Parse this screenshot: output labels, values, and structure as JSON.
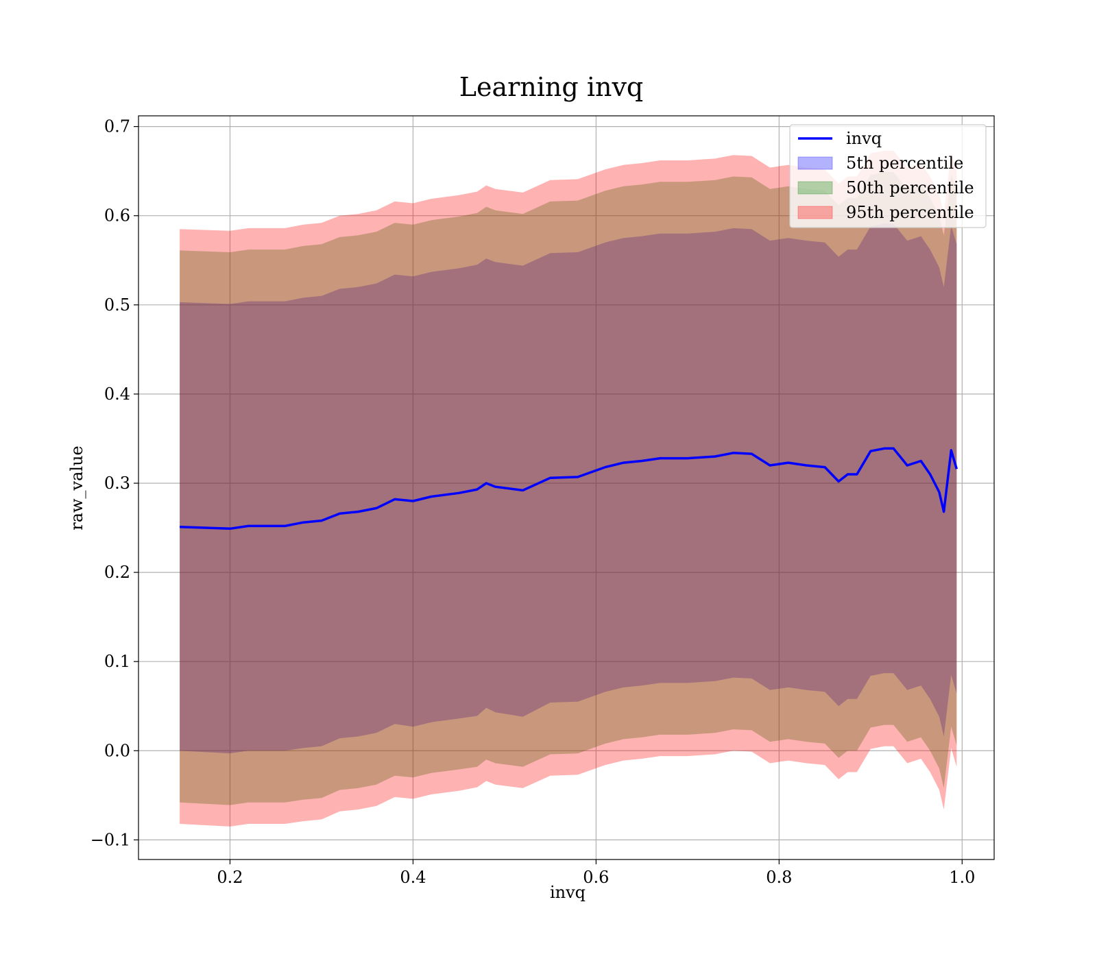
{
  "chart_data": {
    "type": "area",
    "title": "Learning invq",
    "xlabel": "invq",
    "ylabel": "raw_value",
    "xlim": [
      0.1,
      1.035
    ],
    "ylim": [
      -0.122,
      0.712
    ],
    "x_ticks": [
      0.2,
      0.4,
      0.6,
      0.8,
      1.0
    ],
    "x_tick_labels": [
      "0.2",
      "0.4",
      "0.6",
      "0.8",
      "1.0"
    ],
    "y_ticks": [
      -0.1,
      0.0,
      0.1,
      0.2,
      0.3,
      0.4,
      0.5,
      0.6,
      0.7
    ],
    "y_tick_labels": [
      "−0.1",
      "0.0",
      "0.1",
      "0.2",
      "0.3",
      "0.4",
      "0.5",
      "0.6",
      "0.7"
    ],
    "grid": true,
    "legend_position": "upper right",
    "x": [
      0.145,
      0.2,
      0.22,
      0.26,
      0.28,
      0.3,
      0.32,
      0.34,
      0.36,
      0.38,
      0.4,
      0.42,
      0.45,
      0.47,
      0.48,
      0.49,
      0.52,
      0.55,
      0.58,
      0.61,
      0.63,
      0.65,
      0.67,
      0.7,
      0.73,
      0.75,
      0.77,
      0.79,
      0.81,
      0.83,
      0.85,
      0.865,
      0.875,
      0.885,
      0.9,
      0.915,
      0.925,
      0.94,
      0.955,
      0.965,
      0.975,
      0.98,
      0.988,
      0.994
    ],
    "series": [
      {
        "name": "invq",
        "kind": "line",
        "color": "#0000ff",
        "values": [
          0.251,
          0.249,
          0.252,
          0.252,
          0.256,
          0.258,
          0.266,
          0.268,
          0.272,
          0.282,
          0.28,
          0.285,
          0.289,
          0.293,
          0.3,
          0.296,
          0.292,
          0.306,
          0.307,
          0.318,
          0.323,
          0.325,
          0.328,
          0.328,
          0.33,
          0.334,
          0.333,
          0.32,
          0.323,
          0.32,
          0.318,
          0.302,
          0.31,
          0.31,
          0.336,
          0.339,
          0.339,
          0.32,
          0.325,
          0.31,
          0.29,
          0.268,
          0.337,
          0.316
        ]
      },
      {
        "name": "5th percentile",
        "kind": "band",
        "color": "#0000ff",
        "lower": [
          0.0,
          -0.003,
          0.0,
          0.0,
          0.003,
          0.005,
          0.014,
          0.016,
          0.02,
          0.03,
          0.027,
          0.032,
          0.036,
          0.039,
          0.048,
          0.043,
          0.038,
          0.054,
          0.055,
          0.066,
          0.071,
          0.073,
          0.076,
          0.076,
          0.078,
          0.082,
          0.081,
          0.068,
          0.071,
          0.068,
          0.066,
          0.05,
          0.058,
          0.058,
          0.084,
          0.087,
          0.087,
          0.068,
          0.073,
          0.058,
          0.038,
          0.016,
          0.085,
          0.064
        ],
        "upper": [
          0.503,
          0.501,
          0.504,
          0.504,
          0.508,
          0.51,
          0.518,
          0.52,
          0.524,
          0.534,
          0.532,
          0.537,
          0.541,
          0.545,
          0.552,
          0.548,
          0.544,
          0.558,
          0.559,
          0.57,
          0.575,
          0.577,
          0.58,
          0.58,
          0.582,
          0.586,
          0.585,
          0.572,
          0.575,
          0.572,
          0.57,
          0.554,
          0.562,
          0.562,
          0.588,
          0.591,
          0.591,
          0.572,
          0.577,
          0.562,
          0.542,
          0.52,
          0.589,
          0.568
        ]
      },
      {
        "name": "50th percentile",
        "kind": "band",
        "color": "#008000",
        "lower": [
          -0.058,
          -0.061,
          -0.058,
          -0.058,
          -0.055,
          -0.053,
          -0.044,
          -0.042,
          -0.038,
          -0.028,
          -0.03,
          -0.025,
          -0.021,
          -0.018,
          -0.01,
          -0.014,
          -0.018,
          -0.004,
          -0.003,
          0.008,
          0.013,
          0.015,
          0.018,
          0.018,
          0.02,
          0.024,
          0.023,
          0.01,
          0.013,
          0.01,
          0.008,
          -0.008,
          0.0,
          0.0,
          0.026,
          0.029,
          0.029,
          0.01,
          0.015,
          0.0,
          -0.02,
          -0.042,
          0.027,
          0.006
        ],
        "upper": [
          0.561,
          0.559,
          0.562,
          0.562,
          0.566,
          0.568,
          0.576,
          0.578,
          0.582,
          0.592,
          0.59,
          0.595,
          0.599,
          0.603,
          0.61,
          0.606,
          0.602,
          0.616,
          0.617,
          0.628,
          0.633,
          0.635,
          0.638,
          0.638,
          0.64,
          0.644,
          0.643,
          0.63,
          0.633,
          0.63,
          0.628,
          0.612,
          0.62,
          0.62,
          0.646,
          0.649,
          0.649,
          0.63,
          0.635,
          0.62,
          0.6,
          0.578,
          0.647,
          0.626
        ]
      },
      {
        "name": "95th percentile",
        "kind": "band",
        "color": "#ff0000",
        "lower": [
          -0.082,
          -0.085,
          -0.082,
          -0.082,
          -0.079,
          -0.077,
          -0.068,
          -0.066,
          -0.062,
          -0.052,
          -0.054,
          -0.049,
          -0.045,
          -0.041,
          -0.034,
          -0.038,
          -0.042,
          -0.028,
          -0.027,
          -0.016,
          -0.011,
          -0.009,
          -0.006,
          -0.006,
          -0.004,
          0.0,
          -0.001,
          -0.014,
          -0.011,
          -0.014,
          -0.016,
          -0.032,
          -0.024,
          -0.024,
          0.002,
          0.005,
          0.005,
          -0.014,
          -0.009,
          -0.024,
          -0.044,
          -0.066,
          0.003,
          -0.018
        ],
        "upper": [
          0.585,
          0.583,
          0.586,
          0.586,
          0.59,
          0.592,
          0.6,
          0.602,
          0.606,
          0.616,
          0.614,
          0.619,
          0.623,
          0.627,
          0.634,
          0.63,
          0.626,
          0.64,
          0.641,
          0.652,
          0.657,
          0.659,
          0.662,
          0.662,
          0.664,
          0.668,
          0.667,
          0.654,
          0.657,
          0.654,
          0.652,
          0.636,
          0.644,
          0.644,
          0.67,
          0.673,
          0.673,
          0.654,
          0.659,
          0.644,
          0.624,
          0.602,
          0.671,
          0.65
        ]
      }
    ]
  }
}
